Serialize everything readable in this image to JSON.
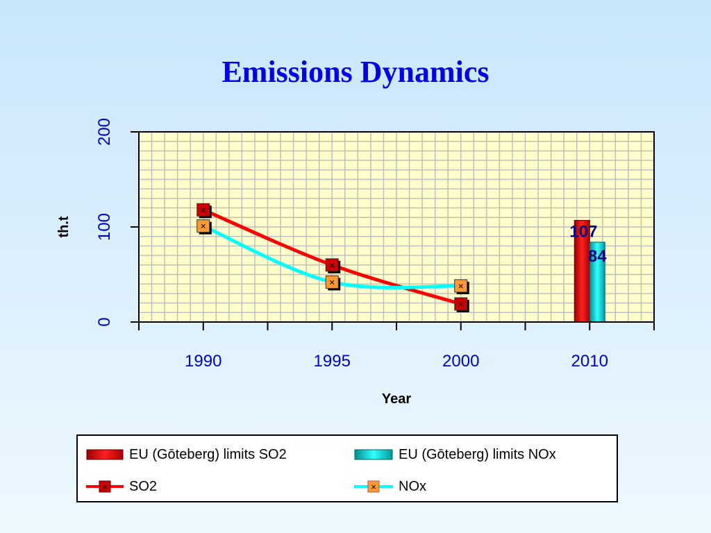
{
  "slide": {
    "title": "Emissions Dynamics"
  },
  "chart_data": {
    "type": "line",
    "ylabel": "th.t",
    "xlabel": "Year",
    "ylim": [
      0,
      200
    ],
    "y_ticks": [
      "0",
      "100",
      "200"
    ],
    "categories": [
      "1990",
      "1995",
      "2000",
      "2010"
    ],
    "grid": true,
    "plot_background": "#ffffcc",
    "series": [
      {
        "name": "SO2",
        "type": "line",
        "color": "#ff0000",
        "marker_color": "#cc0000",
        "x": [
          "1990",
          "1995",
          "2000"
        ],
        "values": [
          118,
          60,
          19
        ]
      },
      {
        "name": "NOx",
        "type": "line",
        "color": "#00ffff",
        "marker_color": "#ff9933",
        "x": [
          "1990",
          "1995",
          "2000"
        ],
        "values": [
          101,
          42,
          38
        ]
      },
      {
        "name": "EU (Gōteberg) limits SO2",
        "type": "bar",
        "color": "#ee0000",
        "x": [
          "2010"
        ],
        "values": [
          107
        ],
        "label": "107",
        "label_color": "#000080"
      },
      {
        "name": "EU (Gōteberg) limits NOx",
        "type": "bar",
        "color": "#00cccc",
        "x": [
          "2010"
        ],
        "values": [
          84
        ],
        "label": "84",
        "label_color": "#000080"
      }
    ],
    "legend": {
      "placement": "bottom",
      "entries": [
        "EU (Gōteberg) limits SO2",
        "EU (Gōteberg) limits NOx",
        "SO2",
        "NOx"
      ]
    }
  }
}
